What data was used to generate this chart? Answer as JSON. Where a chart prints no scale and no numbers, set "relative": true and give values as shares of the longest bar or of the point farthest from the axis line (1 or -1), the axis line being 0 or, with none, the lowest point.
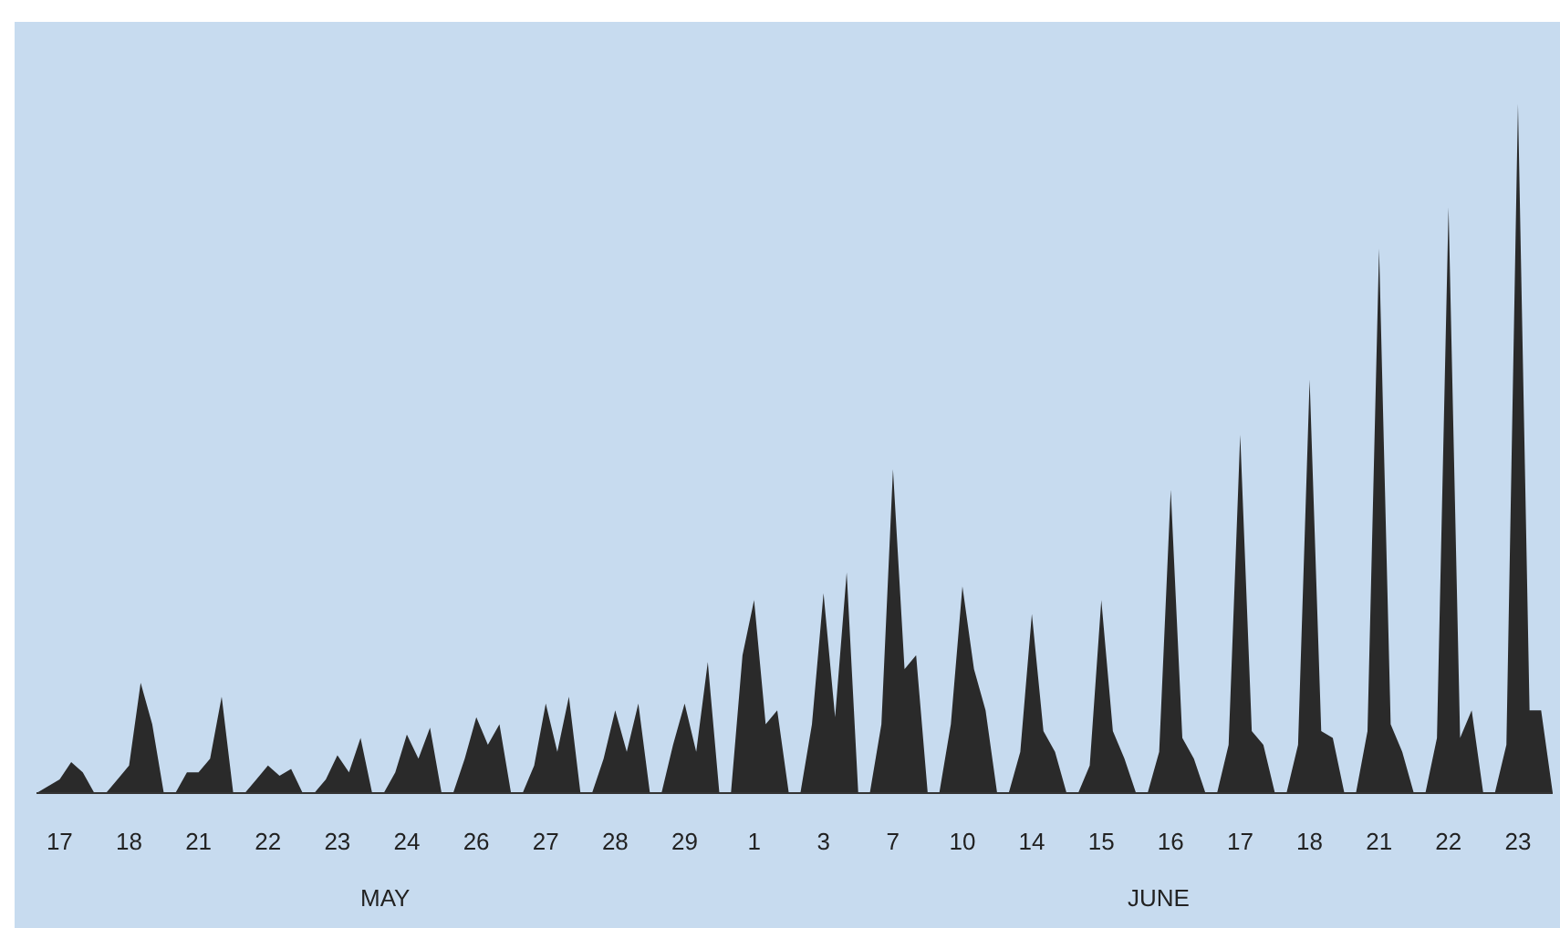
{
  "chart_data": {
    "type": "area",
    "relative": true,
    "color": "#2a2a2a",
    "categories": [
      null,
      null,
      "17",
      null,
      null,
      null,
      null,
      null,
      "18",
      null,
      null,
      null,
      null,
      null,
      "21",
      null,
      null,
      null,
      null,
      null,
      "22",
      null,
      null,
      null,
      null,
      null,
      "23",
      null,
      null,
      null,
      null,
      null,
      "24",
      null,
      null,
      null,
      null,
      null,
      "26",
      null,
      null,
      null,
      null,
      null,
      "27",
      null,
      null,
      null,
      null,
      null,
      "28",
      null,
      null,
      null,
      null,
      null,
      "29",
      null,
      null,
      null,
      null,
      null,
      "1",
      null,
      null,
      null,
      null,
      null,
      "3",
      null,
      null,
      null,
      null,
      null,
      "7",
      null,
      null,
      null,
      null,
      null,
      "10",
      null,
      null,
      null,
      null,
      null,
      "14",
      null,
      null,
      null,
      null,
      null,
      "15",
      null,
      null,
      null,
      null,
      null,
      "16",
      null,
      null,
      null,
      null,
      null,
      "17",
      null,
      null,
      null,
      null,
      null,
      "18",
      null,
      null,
      null,
      null,
      null,
      "21",
      null,
      null,
      null,
      null,
      null,
      "22",
      null,
      null,
      null,
      null,
      null,
      "23",
      null,
      null,
      null
    ],
    "values": [
      0,
      0.01,
      0.02,
      0.045,
      0.03,
      0,
      0,
      0.02,
      0.04,
      0.16,
      0.1,
      0,
      0,
      0.03,
      0.03,
      0.05,
      0.14,
      0,
      0,
      0.02,
      0.04,
      0.025,
      0.035,
      0,
      0,
      0.02,
      0.055,
      0.03,
      0.08,
      0,
      0,
      0.03,
      0.085,
      0.05,
      0.095,
      0,
      0,
      0.05,
      0.11,
      0.07,
      0.1,
      0,
      0,
      0.04,
      0.13,
      0.06,
      0.14,
      0,
      0,
      0.05,
      0.12,
      0.06,
      0.13,
      0,
      0,
      0.07,
      0.13,
      0.06,
      0.19,
      0,
      0,
      0.2,
      0.28,
      0.1,
      0.12,
      0,
      0,
      0.1,
      0.29,
      0.11,
      0.32,
      0,
      0,
      0.1,
      0.47,
      0.18,
      0.2,
      0,
      0,
      0.1,
      0.3,
      0.18,
      0.12,
      0,
      0,
      0.06,
      0.26,
      0.09,
      0.06,
      0,
      0,
      0.04,
      0.28,
      0.09,
      0.05,
      0,
      0,
      0.06,
      0.44,
      0.08,
      0.05,
      0,
      0,
      0.07,
      0.52,
      0.09,
      0.07,
      0,
      0,
      0.07,
      0.6,
      0.09,
      0.08,
      0,
      0,
      0.09,
      0.79,
      0.1,
      0.06,
      0,
      0,
      0.08,
      0.85,
      0.08,
      0.12,
      0,
      0,
      0.07,
      1.0,
      0.12,
      0.12,
      0
    ],
    "annotations": [
      "MAY",
      "JUNE"
    ]
  }
}
